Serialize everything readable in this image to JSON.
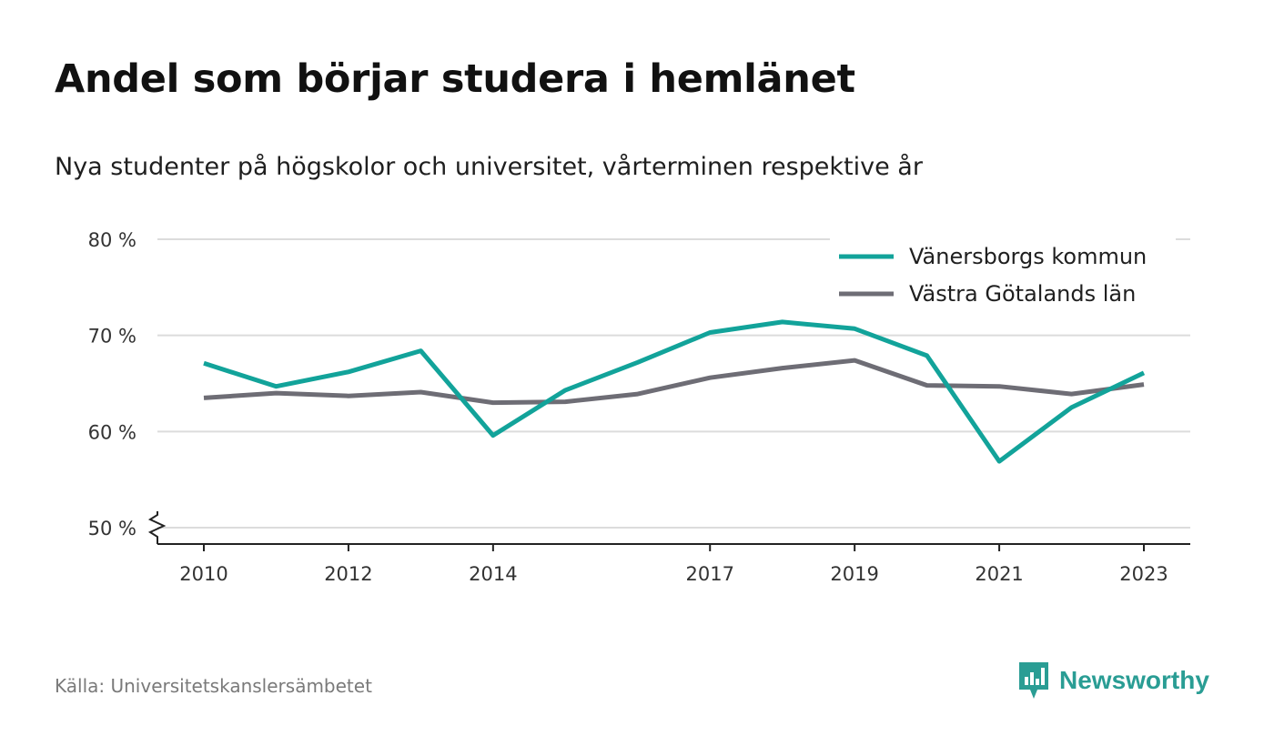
{
  "header": {
    "title": "Andel som börjar studera i hemlänet",
    "subtitle": "Nya studenter på högskolor och universitet, vårterminen respektive år"
  },
  "footer": {
    "source": "Källa: Universitetskanslersämbetet",
    "brand": "Newsworthy",
    "brand_icon": "bar-chart-badge-icon"
  },
  "colors": {
    "series_1": "#12a39a",
    "series_2": "#6e6d75",
    "grid": "#dcdcdc",
    "brand": "#2a9d94"
  },
  "chart_data": {
    "type": "line",
    "title": "Andel som börjar studera i hemlänet",
    "subtitle": "Nya studenter på högskolor och universitet, vårterminen respektive år",
    "x": [
      2010,
      2011,
      2012,
      2013,
      2014,
      2015,
      2016,
      2017,
      2018,
      2019,
      2020,
      2021,
      2022,
      2023
    ],
    "x_tick_labels": [
      "2010",
      "2012",
      "2014",
      "2017",
      "2019",
      "2021",
      "2023"
    ],
    "y_ticks": [
      50,
      60,
      70,
      80
    ],
    "y_tick_labels": [
      "50 %",
      "60 %",
      "70 %",
      "80 %"
    ],
    "ylim": [
      50,
      80
    ],
    "y_axis_break": true,
    "grid": true,
    "legend_position": "top-right",
    "series": [
      {
        "name": "Vänersborgs kommun",
        "color": "#12a39a",
        "values": [
          67.1,
          64.7,
          66.2,
          68.4,
          59.6,
          64.3,
          67.2,
          70.3,
          71.4,
          70.7,
          67.9,
          56.9,
          62.5,
          66.1
        ]
      },
      {
        "name": "Västra Götalands län",
        "color": "#6e6d75",
        "values": [
          63.5,
          64.0,
          63.7,
          64.1,
          63.0,
          63.1,
          63.9,
          65.6,
          66.6,
          67.4,
          64.8,
          64.7,
          63.9,
          64.9
        ]
      }
    ]
  }
}
